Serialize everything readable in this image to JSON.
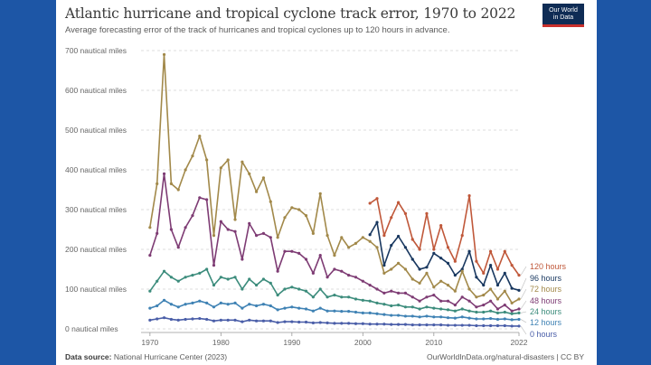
{
  "page": {
    "title": "Atlantic hurricane and tropical cyclone track error, 1970 to 2022",
    "subtitle": "Average forecasting error of the track of hurricanes and tropical cyclones up to 120 hours in advance.",
    "logo_line1": "Our World",
    "logo_line2": "in Data",
    "source_label": "Data source:",
    "source_text": "National Hurricane Center (2023)",
    "footer_right": "OurWorldInData.org/natural-disasters | CC BY"
  },
  "chart_data": {
    "type": "line",
    "x_ticks": [
      1970,
      1980,
      1990,
      2000,
      2010,
      2022
    ],
    "y_ticks": [
      0,
      100,
      200,
      300,
      400,
      500,
      600,
      700
    ],
    "y_unit": "nautical miles",
    "ylim": [
      0,
      700
    ],
    "xlim": [
      1969,
      2022
    ],
    "grid": "horizontal dashed",
    "legend_placement": "right end labels",
    "series": [
      {
        "name": "120 hours",
        "color": "#c0583a",
        "x": [
          2001,
          2002,
          2003,
          2004,
          2005,
          2006,
          2007,
          2008,
          2009,
          2010,
          2011,
          2012,
          2013,
          2014,
          2015,
          2016,
          2017,
          2018,
          2019,
          2020,
          2021,
          2022
        ],
        "y": [
          316,
          328,
          235,
          280,
          318,
          290,
          225,
          200,
          290,
          200,
          260,
          205,
          170,
          235,
          335,
          170,
          140,
          195,
          150,
          195,
          160,
          135
        ]
      },
      {
        "name": "96 hours",
        "color": "#18375f",
        "x": [
          2001,
          2002,
          2003,
          2004,
          2005,
          2006,
          2007,
          2008,
          2009,
          2010,
          2011,
          2012,
          2013,
          2014,
          2015,
          2016,
          2017,
          2018,
          2019,
          2020,
          2021,
          2022
        ],
        "y": [
          237,
          268,
          160,
          210,
          233,
          205,
          175,
          150,
          155,
          190,
          178,
          165,
          135,
          150,
          195,
          130,
          110,
          160,
          110,
          140,
          102,
          97
        ]
      },
      {
        "name": "72 hours",
        "color": "#a2894a",
        "x": [
          1970,
          1971,
          1972,
          1973,
          1974,
          1975,
          1976,
          1977,
          1978,
          1979,
          1980,
          1981,
          1982,
          1983,
          1984,
          1985,
          1986,
          1987,
          1988,
          1989,
          1990,
          1991,
          1992,
          1993,
          1994,
          1995,
          1996,
          1997,
          1998,
          1999,
          2000,
          2001,
          2002,
          2003,
          2004,
          2005,
          2006,
          2007,
          2008,
          2009,
          2010,
          2011,
          2012,
          2013,
          2014,
          2015,
          2016,
          2017,
          2018,
          2019,
          2020,
          2021,
          2022
        ],
        "y": [
          255,
          365,
          690,
          365,
          350,
          400,
          435,
          485,
          425,
          235,
          405,
          425,
          275,
          420,
          390,
          345,
          380,
          320,
          230,
          280,
          305,
          300,
          285,
          240,
          340,
          235,
          185,
          230,
          205,
          215,
          230,
          220,
          205,
          140,
          150,
          165,
          150,
          125,
          115,
          140,
          105,
          120,
          110,
          95,
          145,
          100,
          80,
          85,
          100,
          75,
          95,
          65,
          75
        ]
      },
      {
        "name": "48 hours",
        "color": "#7e3c74",
        "x": [
          1970,
          1971,
          1972,
          1973,
          1974,
          1975,
          1976,
          1977,
          1978,
          1979,
          1980,
          1981,
          1982,
          1983,
          1984,
          1985,
          1986,
          1987,
          1988,
          1989,
          1990,
          1991,
          1992,
          1993,
          1994,
          1995,
          1996,
          1997,
          1998,
          1999,
          2000,
          2001,
          2002,
          2003,
          2004,
          2005,
          2006,
          2007,
          2008,
          2009,
          2010,
          2011,
          2012,
          2013,
          2014,
          2015,
          2016,
          2017,
          2018,
          2019,
          2020,
          2021,
          2022
        ],
        "y": [
          185,
          240,
          390,
          250,
          205,
          255,
          285,
          330,
          325,
          160,
          270,
          250,
          245,
          175,
          265,
          235,
          240,
          230,
          145,
          195,
          195,
          190,
          175,
          140,
          185,
          130,
          150,
          145,
          135,
          130,
          120,
          110,
          100,
          90,
          95,
          90,
          90,
          80,
          70,
          80,
          85,
          70,
          70,
          60,
          80,
          70,
          55,
          60,
          70,
          50,
          60,
          45,
          50
        ]
      },
      {
        "name": "24 hours",
        "color": "#3c8c7c",
        "x": [
          1970,
          1971,
          1972,
          1973,
          1974,
          1975,
          1976,
          1977,
          1978,
          1979,
          1980,
          1981,
          1982,
          1983,
          1984,
          1985,
          1986,
          1987,
          1988,
          1989,
          1990,
          1991,
          1992,
          1993,
          1994,
          1995,
          1996,
          1997,
          1998,
          1999,
          2000,
          2001,
          2002,
          2003,
          2004,
          2005,
          2006,
          2007,
          2008,
          2009,
          2010,
          2011,
          2012,
          2013,
          2014,
          2015,
          2016,
          2017,
          2018,
          2019,
          2020,
          2021,
          2022
        ],
        "y": [
          95,
          120,
          145,
          130,
          120,
          130,
          135,
          140,
          150,
          110,
          130,
          125,
          130,
          100,
          125,
          110,
          125,
          115,
          85,
          100,
          105,
          100,
          95,
          80,
          100,
          80,
          85,
          80,
          80,
          75,
          72,
          70,
          65,
          62,
          58,
          60,
          55,
          55,
          50,
          55,
          52,
          50,
          48,
          45,
          50,
          45,
          42,
          42,
          45,
          40,
          42,
          38,
          40
        ]
      },
      {
        "name": "12 hours",
        "color": "#3f82b4",
        "x": [
          1970,
          1971,
          1972,
          1973,
          1974,
          1975,
          1976,
          1977,
          1978,
          1979,
          1980,
          1981,
          1982,
          1983,
          1984,
          1985,
          1986,
          1987,
          1988,
          1989,
          1990,
          1991,
          1992,
          1993,
          1994,
          1995,
          1996,
          1997,
          1998,
          1999,
          2000,
          2001,
          2002,
          2003,
          2004,
          2005,
          2006,
          2007,
          2008,
          2009,
          2010,
          2011,
          2012,
          2013,
          2014,
          2015,
          2016,
          2017,
          2018,
          2019,
          2020,
          2021,
          2022
        ],
        "y": [
          52,
          58,
          72,
          62,
          55,
          62,
          65,
          70,
          65,
          55,
          65,
          62,
          65,
          52,
          62,
          58,
          62,
          58,
          48,
          52,
          55,
          52,
          50,
          45,
          52,
          45,
          45,
          44,
          44,
          42,
          40,
          40,
          38,
          36,
          34,
          34,
          32,
          32,
          30,
          32,
          30,
          30,
          28,
          27,
          30,
          27,
          25,
          25,
          26,
          24,
          25,
          23,
          24
        ]
      },
      {
        "name": "0 hours",
        "color": "#4a5ea8",
        "x": [
          1970,
          1971,
          1972,
          1973,
          1974,
          1975,
          1976,
          1977,
          1978,
          1979,
          1980,
          1981,
          1982,
          1983,
          1984,
          1985,
          1986,
          1987,
          1988,
          1989,
          1990,
          1991,
          1992,
          1993,
          1994,
          1995,
          1996,
          1997,
          1998,
          1999,
          2000,
          2001,
          2002,
          2003,
          2004,
          2005,
          2006,
          2007,
          2008,
          2009,
          2010,
          2011,
          2012,
          2013,
          2014,
          2015,
          2016,
          2017,
          2018,
          2019,
          2020,
          2021,
          2022
        ],
        "y": [
          22,
          25,
          28,
          24,
          22,
          24,
          25,
          26,
          24,
          20,
          22,
          22,
          22,
          18,
          22,
          20,
          20,
          20,
          16,
          18,
          18,
          17,
          17,
          15,
          16,
          15,
          14,
          14,
          14,
          13,
          13,
          12,
          12,
          12,
          11,
          11,
          11,
          10,
          10,
          10,
          10,
          10,
          9,
          9,
          9,
          9,
          8,
          8,
          8,
          8,
          8,
          7,
          7
        ]
      }
    ],
    "legend_order": [
      "120 hours",
      "96 hours",
      "72 hours",
      "48 hours",
      "24 hours",
      "12 hours",
      "0 hours"
    ]
  }
}
